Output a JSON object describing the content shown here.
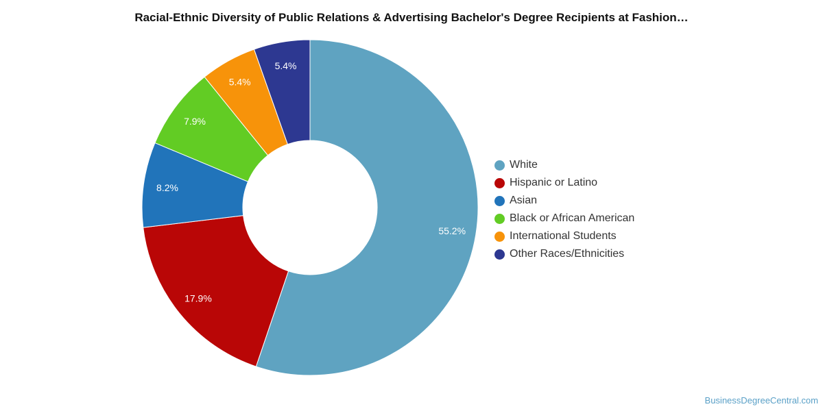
{
  "chart_data": {
    "type": "pie",
    "style": "donut",
    "title": "Racial-Ethnic Diversity of Public Relations & Advertising Bachelor's Degree Recipients at Fashion…",
    "categories": [
      "White",
      "Hispanic or Latino",
      "Asian",
      "Black or African American",
      "International Students",
      "Other Races/Ethnicities"
    ],
    "values": [
      55.2,
      17.9,
      8.2,
      7.9,
      5.4,
      5.4
    ],
    "value_labels": [
      "55.2%",
      "17.9%",
      "8.2%",
      "7.9%",
      "5.4%",
      "5.4%"
    ],
    "colors": [
      "#5fa3c1",
      "#b90606",
      "#2174ba",
      "#62cc24",
      "#f7930a",
      "#2d3891"
    ],
    "legend_placement": "right"
  },
  "footer": {
    "credit": "BusinessDegreeCentral.com"
  }
}
